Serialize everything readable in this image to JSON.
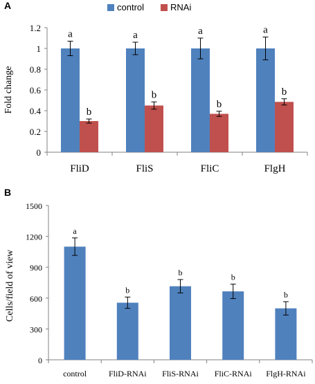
{
  "colors": {
    "control": "#4f81bd",
    "rnai": "#c0504d",
    "axis": "#808080",
    "text": "#000000"
  },
  "chart_data": [
    {
      "panel_label": "A",
      "type": "bar",
      "categories": [
        "FliD",
        "FliS",
        "FliC",
        "FlgH"
      ],
      "series": [
        {
          "name": "control",
          "values": [
            1.0,
            1.0,
            1.0,
            1.0
          ],
          "errors": [
            0.07,
            0.06,
            0.1,
            0.11
          ],
          "letters": [
            "a",
            "a",
            "a",
            "a"
          ]
        },
        {
          "name": "RNAi",
          "values": [
            0.3,
            0.45,
            0.37,
            0.485
          ],
          "errors": [
            0.02,
            0.035,
            0.025,
            0.03
          ],
          "letters": [
            "b",
            "b",
            "b",
            "b"
          ]
        }
      ],
      "ylabel": "Fold change",
      "ylim": [
        0,
        1.2
      ],
      "yticks": [
        "0",
        "0.2",
        "0.4",
        "0.6",
        "0.8",
        "1",
        "1.2"
      ],
      "legend_position": "top",
      "grid": false
    },
    {
      "panel_label": "B",
      "type": "bar",
      "categories": [
        "control",
        "FliD-RNAi",
        "FliS-RNAi",
        "FliC-RNAi",
        "FlgH-RNAi"
      ],
      "series": [
        {
          "values": [
            1100,
            555,
            715,
            665,
            500
          ],
          "errors": [
            85,
            55,
            65,
            70,
            65
          ],
          "letters": [
            "a",
            "b",
            "b",
            "b",
            "b"
          ]
        }
      ],
      "ylabel": "Cells/field of view",
      "ylim": [
        0,
        1500
      ],
      "yticks": [
        "0",
        "300",
        "600",
        "900",
        "1200",
        "1500"
      ],
      "grid": false
    }
  ]
}
